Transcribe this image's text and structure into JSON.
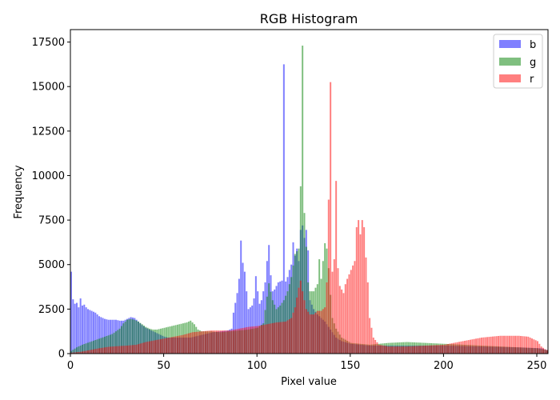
{
  "chart_data": {
    "type": "bar",
    "title": "RGB Histogram",
    "xlabel": "Pixel value",
    "ylabel": "Frequency",
    "xlim": [
      0,
      256
    ],
    "ylim": [
      0,
      18200
    ],
    "x_ticks": [
      0,
      50,
      100,
      150,
      200,
      250
    ],
    "y_ticks": [
      0,
      2500,
      5000,
      7500,
      10000,
      12500,
      15000,
      17500
    ],
    "x_tick_labels": [
      "0",
      "50",
      "100",
      "150",
      "200",
      "250"
    ],
    "y_tick_labels": [
      "0",
      "2500",
      "5000",
      "7500",
      "10000",
      "12500",
      "15000",
      "17500"
    ],
    "grid": false,
    "legend_position": "top-right",
    "bin_count": 256,
    "bar_alpha": 0.5,
    "series": [
      {
        "name": "b",
        "color": "#0000ff",
        "points": [
          [
            0,
            4600
          ],
          [
            1,
            3050
          ],
          [
            2,
            2800
          ],
          [
            3,
            2850
          ],
          [
            4,
            2600
          ],
          [
            5,
            3100
          ],
          [
            6,
            2700
          ],
          [
            7,
            2750
          ],
          [
            8,
            2600
          ],
          [
            9,
            2500
          ],
          [
            10,
            2450
          ],
          [
            11,
            2400
          ],
          [
            12,
            2350
          ],
          [
            13,
            2300
          ],
          [
            14,
            2200
          ],
          [
            15,
            2100
          ],
          [
            16,
            2050
          ],
          [
            17,
            2000
          ],
          [
            18,
            1950
          ],
          [
            20,
            1900
          ],
          [
            24,
            1900
          ],
          [
            26,
            1850
          ],
          [
            28,
            1850
          ],
          [
            30,
            1950
          ],
          [
            32,
            2050
          ],
          [
            34,
            2000
          ],
          [
            36,
            1800
          ],
          [
            38,
            1600
          ],
          [
            40,
            1450
          ],
          [
            42,
            1350
          ],
          [
            44,
            1250
          ],
          [
            46,
            1150
          ],
          [
            48,
            1050
          ],
          [
            50,
            950
          ],
          [
            52,
            900
          ],
          [
            56,
            900
          ],
          [
            60,
            900
          ],
          [
            64,
            900
          ],
          [
            68,
            1000
          ],
          [
            72,
            1100
          ],
          [
            76,
            1200
          ],
          [
            80,
            1250
          ],
          [
            84,
            1300
          ],
          [
            86,
            1400
          ],
          [
            87,
            2300
          ],
          [
            88,
            2850
          ],
          [
            89,
            3400
          ],
          [
            90,
            4200
          ],
          [
            91,
            6350
          ],
          [
            92,
            5100
          ],
          [
            93,
            4600
          ],
          [
            94,
            3500
          ],
          [
            95,
            2500
          ],
          [
            96,
            2600
          ],
          [
            97,
            2700
          ],
          [
            98,
            3100
          ],
          [
            99,
            4350
          ],
          [
            100,
            3500
          ],
          [
            101,
            2800
          ],
          [
            102,
            3000
          ],
          [
            103,
            3500
          ],
          [
            104,
            4000
          ],
          [
            105,
            5200
          ],
          [
            106,
            6100
          ],
          [
            107,
            4400
          ],
          [
            108,
            3500
          ],
          [
            109,
            3600
          ],
          [
            110,
            3800
          ],
          [
            111,
            4000
          ],
          [
            112,
            4050
          ],
          [
            113,
            4100
          ],
          [
            114,
            16250
          ],
          [
            115,
            4050
          ],
          [
            116,
            4300
          ],
          [
            117,
            4700
          ],
          [
            118,
            5000
          ],
          [
            119,
            6250
          ],
          [
            120,
            5500
          ],
          [
            121,
            5900
          ],
          [
            122,
            5200
          ],
          [
            123,
            6950
          ],
          [
            124,
            7200
          ],
          [
            125,
            6500
          ],
          [
            126,
            6950
          ],
          [
            127,
            5800
          ],
          [
            128,
            3000
          ],
          [
            130,
            2500
          ],
          [
            132,
            2200
          ],
          [
            134,
            2000
          ],
          [
            136,
            1800
          ],
          [
            138,
            1500
          ],
          [
            140,
            1200
          ],
          [
            142,
            900
          ],
          [
            145,
            700
          ],
          [
            150,
            550
          ],
          [
            155,
            500
          ],
          [
            160,
            450
          ],
          [
            165,
            450
          ],
          [
            170,
            450
          ],
          [
            180,
            450
          ],
          [
            200,
            450
          ],
          [
            220,
            400
          ],
          [
            240,
            350
          ],
          [
            252,
            300
          ],
          [
            255,
            200
          ]
        ]
      },
      {
        "name": "g",
        "color": "#008000",
        "points": [
          [
            0,
            150
          ],
          [
            3,
            350
          ],
          [
            6,
            500
          ],
          [
            10,
            650
          ],
          [
            14,
            800
          ],
          [
            18,
            950
          ],
          [
            22,
            1100
          ],
          [
            26,
            1400
          ],
          [
            28,
            1700
          ],
          [
            30,
            1900
          ],
          [
            32,
            1950
          ],
          [
            34,
            1900
          ],
          [
            36,
            1800
          ],
          [
            38,
            1650
          ],
          [
            40,
            1500
          ],
          [
            42,
            1400
          ],
          [
            44,
            1350
          ],
          [
            46,
            1350
          ],
          [
            48,
            1400
          ],
          [
            50,
            1450
          ],
          [
            52,
            1500
          ],
          [
            54,
            1550
          ],
          [
            56,
            1600
          ],
          [
            58,
            1650
          ],
          [
            60,
            1700
          ],
          [
            62,
            1750
          ],
          [
            64,
            1850
          ],
          [
            66,
            1650
          ],
          [
            68,
            1350
          ],
          [
            70,
            1250
          ],
          [
            75,
            1250
          ],
          [
            80,
            1200
          ],
          [
            85,
            1250
          ],
          [
            90,
            1300
          ],
          [
            95,
            1350
          ],
          [
            100,
            1450
          ],
          [
            103,
            1700
          ],
          [
            106,
            3950
          ],
          [
            108,
            3000
          ],
          [
            110,
            2500
          ],
          [
            112,
            2700
          ],
          [
            114,
            3000
          ],
          [
            116,
            3500
          ],
          [
            118,
            4300
          ],
          [
            120,
            5600
          ],
          [
            122,
            5900
          ],
          [
            123,
            9400
          ],
          [
            124,
            17300
          ],
          [
            125,
            7900
          ],
          [
            126,
            6000
          ],
          [
            127,
            4000
          ],
          [
            128,
            3500
          ],
          [
            130,
            3500
          ],
          [
            132,
            3900
          ],
          [
            133,
            5300
          ],
          [
            134,
            4200
          ],
          [
            135,
            5200
          ],
          [
            136,
            6200
          ],
          [
            137,
            5900
          ],
          [
            138,
            4800
          ],
          [
            139,
            3300
          ],
          [
            140,
            2000
          ],
          [
            142,
            1400
          ],
          [
            145,
            900
          ],
          [
            150,
            600
          ],
          [
            155,
            550
          ],
          [
            160,
            500
          ],
          [
            165,
            550
          ],
          [
            170,
            600
          ],
          [
            180,
            650
          ],
          [
            190,
            600
          ],
          [
            200,
            550
          ],
          [
            210,
            500
          ],
          [
            220,
            450
          ],
          [
            230,
            400
          ],
          [
            240,
            350
          ],
          [
            250,
            300
          ],
          [
            255,
            200
          ]
        ]
      },
      {
        "name": "r",
        "color": "#ff0000",
        "points": [
          [
            0,
            50
          ],
          [
            5,
            100
          ],
          [
            10,
            200
          ],
          [
            15,
            300
          ],
          [
            20,
            380
          ],
          [
            25,
            420
          ],
          [
            30,
            450
          ],
          [
            35,
            500
          ],
          [
            40,
            650
          ],
          [
            45,
            750
          ],
          [
            50,
            850
          ],
          [
            55,
            950
          ],
          [
            60,
            1050
          ],
          [
            65,
            1200
          ],
          [
            70,
            1250
          ],
          [
            75,
            1300
          ],
          [
            80,
            1300
          ],
          [
            85,
            1300
          ],
          [
            90,
            1400
          ],
          [
            95,
            1500
          ],
          [
            100,
            1550
          ],
          [
            105,
            1650
          ],
          [
            110,
            1750
          ],
          [
            115,
            1800
          ],
          [
            118,
            2000
          ],
          [
            120,
            2600
          ],
          [
            122,
            3700
          ],
          [
            123,
            4100
          ],
          [
            124,
            3500
          ],
          [
            125,
            3000
          ],
          [
            126,
            2500
          ],
          [
            128,
            2200
          ],
          [
            130,
            2200
          ],
          [
            132,
            2400
          ],
          [
            134,
            2400
          ],
          [
            136,
            2600
          ],
          [
            137,
            4000
          ],
          [
            138,
            8650
          ],
          [
            139,
            15250
          ],
          [
            140,
            4600
          ],
          [
            141,
            5300
          ],
          [
            142,
            9700
          ],
          [
            143,
            4800
          ],
          [
            144,
            3800
          ],
          [
            145,
            3600
          ],
          [
            146,
            3400
          ],
          [
            147,
            3900
          ],
          [
            148,
            4200
          ],
          [
            150,
            4700
          ],
          [
            152,
            5200
          ],
          [
            153,
            7100
          ],
          [
            154,
            7500
          ],
          [
            155,
            6700
          ],
          [
            156,
            7500
          ],
          [
            157,
            7100
          ],
          [
            158,
            5400
          ],
          [
            159,
            4000
          ],
          [
            160,
            2000
          ],
          [
            162,
            900
          ],
          [
            165,
            500
          ],
          [
            170,
            400
          ],
          [
            180,
            400
          ],
          [
            190,
            450
          ],
          [
            200,
            500
          ],
          [
            205,
            600
          ],
          [
            210,
            700
          ],
          [
            215,
            800
          ],
          [
            220,
            900
          ],
          [
            225,
            950
          ],
          [
            230,
            1000
          ],
          [
            235,
            1000
          ],
          [
            240,
            1000
          ],
          [
            245,
            950
          ],
          [
            250,
            700
          ],
          [
            252,
            400
          ],
          [
            254,
            250
          ],
          [
            255,
            200
          ]
        ]
      }
    ]
  }
}
